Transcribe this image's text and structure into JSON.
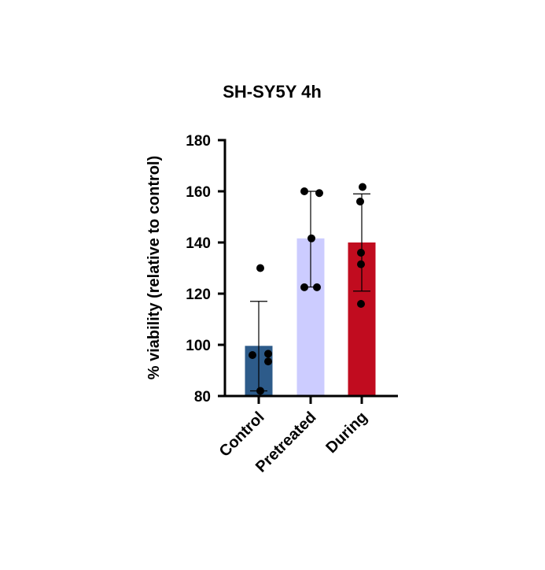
{
  "chart_data": {
    "type": "bar",
    "title": "SH-SY5Y 4h",
    "xlabel": "",
    "ylabel": "% viability (relative to control)",
    "ylim": [
      80,
      180
    ],
    "yticks": [
      80,
      100,
      120,
      140,
      160,
      180
    ],
    "grid": false,
    "categories": [
      "Control",
      "Pretreated",
      "During"
    ],
    "values": [
      99.6,
      141.6,
      140.0
    ],
    "error": [
      {
        "low": 82,
        "high": 117
      },
      {
        "low": 122.6,
        "high": 160
      },
      {
        "low": 121,
        "high": 159
      }
    ],
    "points": [
      [
        130,
        96,
        96.5,
        93.5,
        82
      ],
      [
        160,
        159.3,
        141.6,
        122.5,
        122.5
      ],
      [
        161.7,
        156,
        136,
        131.5,
        116
      ]
    ],
    "colors": [
      "#2d5b8a",
      "#ccccff",
      "#c10c1f"
    ]
  }
}
